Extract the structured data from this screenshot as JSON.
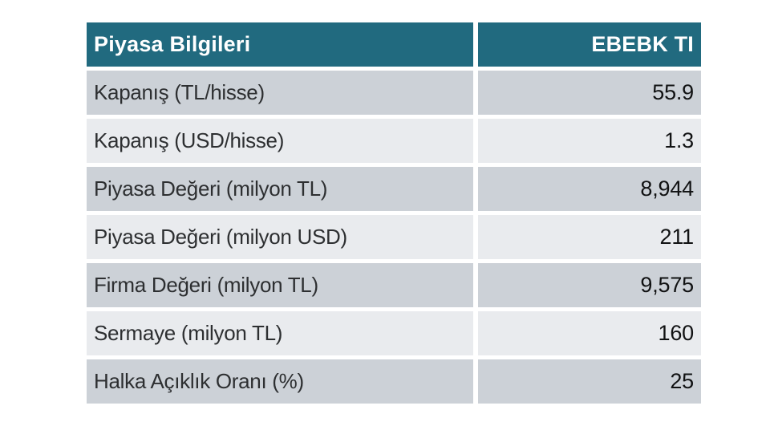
{
  "table": {
    "header": {
      "title": "Piyasa Bilgileri",
      "ticker": "EBEBK TI"
    },
    "rows": [
      {
        "label": "Kapanış (TL/hisse)",
        "value": "55.9"
      },
      {
        "label": "Kapanış (USD/hisse)",
        "value": "1.3"
      },
      {
        "label": "Piyasa Değeri (milyon TL)",
        "value": "8,944"
      },
      {
        "label": "Piyasa Değeri (milyon USD)",
        "value": "211"
      },
      {
        "label": "Firma Değeri (milyon TL)",
        "value": "9,575"
      },
      {
        "label": "Sermaye (milyon TL)",
        "value": "160"
      },
      {
        "label": "Halka Açıklık Oranı (%)",
        "value": "25"
      }
    ],
    "colors": {
      "header_bg": "#216a7f",
      "row_odd_bg": "#ccd1d7",
      "row_even_bg": "#e9ebee",
      "header_text": "#ffffff",
      "label_text": "#2d2f31",
      "value_text": "#111213"
    }
  }
}
